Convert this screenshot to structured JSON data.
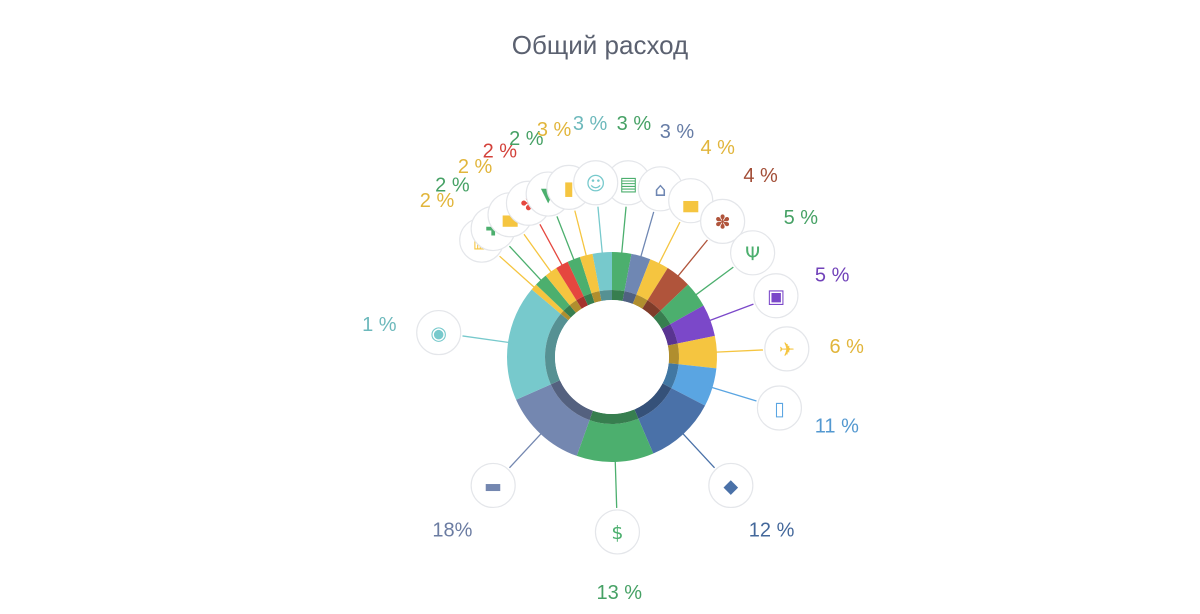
{
  "chart_data": {
    "type": "pie",
    "title": "Общий расход",
    "labels": [
      "3 %",
      "3 %",
      "3 %",
      "4 %",
      "4 %",
      "5 %",
      "5 %",
      "6 %",
      "11 %",
      "12 %",
      "13 %",
      "18 %",
      "1 %",
      "2 %",
      "2 %",
      "2 %",
      "2 %",
      "2 %",
      "3 %"
    ],
    "values": [
      3,
      3,
      3,
      4,
      4,
      5,
      5,
      6,
      11,
      12,
      13,
      18,
      1,
      2,
      2,
      2,
      2,
      2,
      3
    ],
    "colors": [
      "#4caf6e",
      "#6f87b3",
      "#f5c540",
      "#f5c540",
      "#b0543b",
      "#4caf6e",
      "#7b48c9",
      "#f5c540",
      "#5aa5e2",
      "#4a71a8",
      "#4caf6e",
      "#7487b0",
      "#77c9cc",
      "#f5c540",
      "#4caf6e",
      "#f5c540",
      "#e5473f",
      "#4caf6e",
      "#f5c540"
    ],
    "icons": [
      "money-icon",
      "house-icon",
      "car-icon",
      "paw-icon",
      "fork-knife-icon",
      "gift-box-icon",
      "plane-icon",
      "phone-icon",
      "graduation-cap-icon",
      "shopping-bag-icon",
      "bed-icon",
      "soccer-ball-icon",
      "train-icon",
      "first-aid-kit-icon",
      "car-icon",
      "gift-icon",
      "tshirt-icon",
      "fuel-icon",
      "theater-masks-icon"
    ]
  },
  "slices": [
    {
      "label": "3 %",
      "color": "#4caf6e",
      "icon": "money-icon"
    },
    {
      "label": "3 %",
      "color": "#6f87b3",
      "icon": "house-icon"
    },
    {
      "label": "4 %",
      "color": "#f5c540",
      "icon": "car-icon"
    },
    {
      "label": "4 %",
      "color": "#b0543b",
      "icon": "paw-icon"
    },
    {
      "label": "5 %",
      "color": "#4caf6e",
      "icon": "fork-knife-icon"
    },
    {
      "label": "5 %",
      "color": "#7b48c9",
      "icon": "gift-box-icon"
    },
    {
      "label": "6 %",
      "color": "#f5c540",
      "icon": "plane-icon"
    },
    {
      "label": "11 %",
      "color": "#5aa5e2",
      "icon": "phone-icon"
    },
    {
      "label": "12 %",
      "color": "#4a71a8",
      "icon": "graduation-cap-icon"
    },
    {
      "label": "13 %",
      "color": "#4caf6e",
      "icon": "shopping-bag-icon"
    },
    {
      "label": "18%",
      "color": "#7487b0",
      "icon": "bed-icon"
    },
    {
      "label": "1 %",
      "color": "#77c9cc",
      "icon": "soccer-ball-icon"
    },
    {
      "label": "2 %",
      "color": "#f5c540",
      "icon": "train-icon"
    },
    {
      "label": "2 %",
      "color": "#4caf6e",
      "icon": "first-aid-kit-icon"
    },
    {
      "label": "2 %",
      "color": "#f5c540",
      "icon": "car-icon"
    },
    {
      "label": "2 %",
      "color": "#e5473f",
      "icon": "gift-icon"
    },
    {
      "label": "2 %",
      "color": "#4caf6e",
      "icon": "tshirt-icon"
    },
    {
      "label": "3 %",
      "color": "#f5c540",
      "icon": "fuel-icon"
    },
    {
      "label": "3 %",
      "color": "#77c9cc",
      "icon": "theater-masks-icon"
    }
  ]
}
